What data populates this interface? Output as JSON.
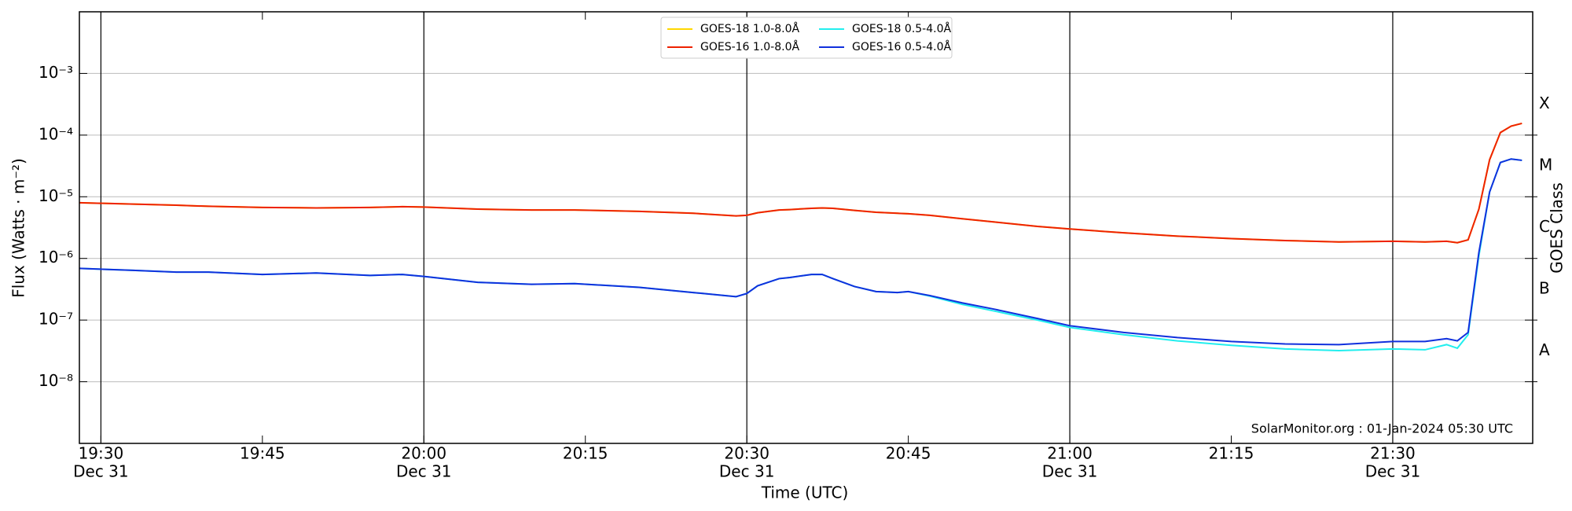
{
  "chart_data": {
    "type": "line",
    "x_label": "Time (UTC)",
    "y_label": "Flux (Watts · m⁻²)",
    "y2_label": "GOES Class",
    "annotation": "SolarMonitor.org : 01-Jan-2024 05:30 UTC",
    "log_y": true,
    "grid": true,
    "x": [
      "19:28",
      "19:33",
      "19:37",
      "19:40",
      "19:45",
      "19:50",
      "19:55",
      "19:58",
      "20:00",
      "20:05",
      "20:10",
      "20:14",
      "20:20",
      "20:25",
      "20:29",
      "20:30",
      "20:31",
      "20:33",
      "20:34",
      "20:36",
      "20:37",
      "20:38",
      "20:40",
      "20:42",
      "20:44",
      "20:45",
      "20:47",
      "20:50",
      "20:53",
      "20:57",
      "21:00",
      "21:05",
      "21:10",
      "21:15",
      "21:20",
      "21:25",
      "21:30",
      "21:33",
      "21:35",
      "21:36",
      "21:37",
      "21:38",
      "21:39",
      "21:40",
      "21:41",
      "21:42"
    ],
    "xlim": [
      "19:28",
      "21:43"
    ],
    "xticks": [
      {
        "value": "19:30",
        "label": [
          "19:30",
          "Dec 31"
        ]
      },
      "19:45",
      {
        "value": "20:00",
        "label": [
          "20:00",
          "Dec 31"
        ]
      },
      "20:15",
      {
        "value": "20:30",
        "label": [
          "20:30",
          "Dec 31"
        ]
      },
      "20:45",
      {
        "value": "21:00",
        "label": [
          "21:00",
          "Dec 31"
        ]
      },
      "21:15",
      {
        "value": "21:30",
        "label": [
          "21:30",
          "Dec 31"
        ]
      }
    ],
    "ylim": [
      1e-09,
      0.01
    ],
    "yticks": [
      {
        "value": 1e-08,
        "label": "10⁻⁸"
      },
      {
        "value": 1e-07,
        "label": "10⁻⁷"
      },
      {
        "value": 1e-06,
        "label": "10⁻⁶"
      },
      {
        "value": 1e-05,
        "label": "10⁻⁵"
      },
      {
        "value": 0.0001,
        "label": "10⁻⁴"
      },
      {
        "value": 0.001,
        "label": "10⁻³"
      }
    ],
    "y2ticks": [
      {
        "value": 1e-08,
        "label": "A"
      },
      {
        "value": 1e-07,
        "label": "B"
      },
      {
        "value": 1e-06,
        "label": "C"
      },
      {
        "value": 1e-05,
        "label": "M"
      },
      {
        "value": 0.0001,
        "label": "X"
      }
    ],
    "series": [
      {
        "name": "GOES-18 1.0-8.0Å",
        "color": "#ffd700",
        "values": [
          8e-06,
          7.6e-06,
          7.3e-06,
          7e-06,
          6.7e-06,
          6.6e-06,
          6.7e-06,
          6.9e-06,
          6.8e-06,
          6.3e-06,
          6.1e-06,
          6.1e-06,
          5.8e-06,
          5.4e-06,
          4.9e-06,
          5e-06,
          5.5e-06,
          6.1e-06,
          6.2e-06,
          6.5e-06,
          6.6e-06,
          6.5e-06,
          6e-06,
          5.6e-06,
          5.4e-06,
          5.3e-06,
          5e-06,
          4.4e-06,
          3.9e-06,
          3.3e-06,
          3e-06,
          2.6e-06,
          2.3e-06,
          2.1e-06,
          1.95e-06,
          1.85e-06,
          1.9e-06,
          1.85e-06,
          1.9e-06,
          1.8e-06,
          2e-06,
          6.3e-06,
          4e-05,
          0.00011,
          0.00014,
          0.000155
        ]
      },
      {
        "name": "GOES-16 1.0-8.0Å",
        "color": "#ee2200",
        "values": [
          8e-06,
          7.6e-06,
          7.3e-06,
          7e-06,
          6.7e-06,
          6.6e-06,
          6.7e-06,
          6.9e-06,
          6.8e-06,
          6.3e-06,
          6.1e-06,
          6.1e-06,
          5.8e-06,
          5.4e-06,
          4.9e-06,
          5e-06,
          5.5e-06,
          6.1e-06,
          6.2e-06,
          6.5e-06,
          6.6e-06,
          6.5e-06,
          6e-06,
          5.6e-06,
          5.4e-06,
          5.3e-06,
          5e-06,
          4.4e-06,
          3.9e-06,
          3.3e-06,
          3e-06,
          2.6e-06,
          2.3e-06,
          2.1e-06,
          1.95e-06,
          1.85e-06,
          1.9e-06,
          1.85e-06,
          1.9e-06,
          1.8e-06,
          2e-06,
          6.3e-06,
          4e-05,
          0.00011,
          0.00014,
          0.000155
        ]
      },
      {
        "name": "GOES-18 0.5-4.0Å",
        "color": "#22eeee",
        "values": [
          6.9e-07,
          6.4e-07,
          6e-07,
          6e-07,
          5.5e-07,
          5.8e-07,
          5.3e-07,
          5.5e-07,
          5.1e-07,
          4.1e-07,
          3.8e-07,
          3.9e-07,
          3.4e-07,
          2.8e-07,
          2.4e-07,
          2.7e-07,
          3.6e-07,
          4.7e-07,
          4.9e-07,
          5.5e-07,
          5.5e-07,
          4.7e-07,
          3.5e-07,
          2.9e-07,
          2.8e-07,
          2.9e-07,
          2.45e-07,
          1.8e-07,
          1.4e-07,
          1e-07,
          7.6e-08,
          5.8e-08,
          4.6e-08,
          3.9e-08,
          3.4e-08,
          3.2e-08,
          3.4e-08,
          3.3e-08,
          4e-08,
          3.5e-08,
          5.8e-08,
          1.1e-06,
          1.2e-05,
          3.6e-05,
          4.1e-05,
          3.9e-05
        ]
      },
      {
        "name": "GOES-16 0.5-4.0Å",
        "color": "#1030dd",
        "values": [
          6.9e-07,
          6.4e-07,
          6e-07,
          6e-07,
          5.5e-07,
          5.8e-07,
          5.3e-07,
          5.5e-07,
          5.1e-07,
          4.1e-07,
          3.8e-07,
          3.9e-07,
          3.4e-07,
          2.8e-07,
          2.4e-07,
          2.7e-07,
          3.6e-07,
          4.7e-07,
          4.9e-07,
          5.5e-07,
          5.5e-07,
          4.7e-07,
          3.5e-07,
          2.9e-07,
          2.8e-07,
          2.9e-07,
          2.5e-07,
          1.9e-07,
          1.5e-07,
          1.06e-07,
          8.1e-08,
          6.3e-08,
          5.2e-08,
          4.5e-08,
          4.1e-08,
          4e-08,
          4.5e-08,
          4.5e-08,
          5e-08,
          4.6e-08,
          6.3e-08,
          1.25e-06,
          1.2e-05,
          3.6e-05,
          4.1e-05,
          3.9e-05
        ]
      }
    ]
  }
}
